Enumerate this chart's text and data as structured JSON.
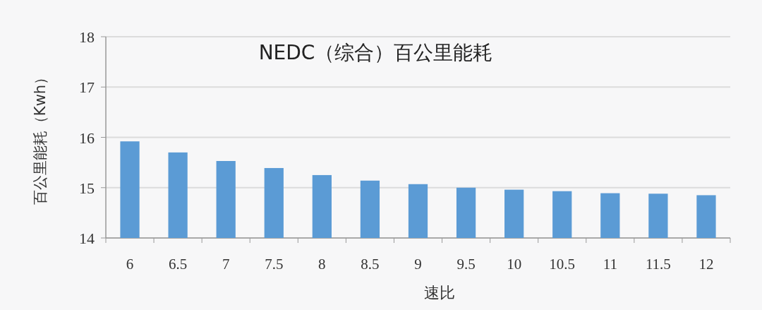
{
  "chart_data": {
    "type": "bar",
    "title": "NEDC（综合）百公里能耗",
    "xlabel": "速比",
    "ylabel": "百公里能耗（Kwh）",
    "categories": [
      "6",
      "6.5",
      "7",
      "7.5",
      "8",
      "8.5",
      "9",
      "9.5",
      "10",
      "10.5",
      "11",
      "11.5",
      "12"
    ],
    "values": [
      15.92,
      15.7,
      15.53,
      15.39,
      15.25,
      15.14,
      15.07,
      15.0,
      14.96,
      14.93,
      14.89,
      14.88,
      14.85
    ],
    "color": "#5b9bd5",
    "ylim": [
      14,
      18
    ],
    "yticks": [
      14,
      15,
      16,
      17,
      18
    ],
    "grid": "y"
  }
}
